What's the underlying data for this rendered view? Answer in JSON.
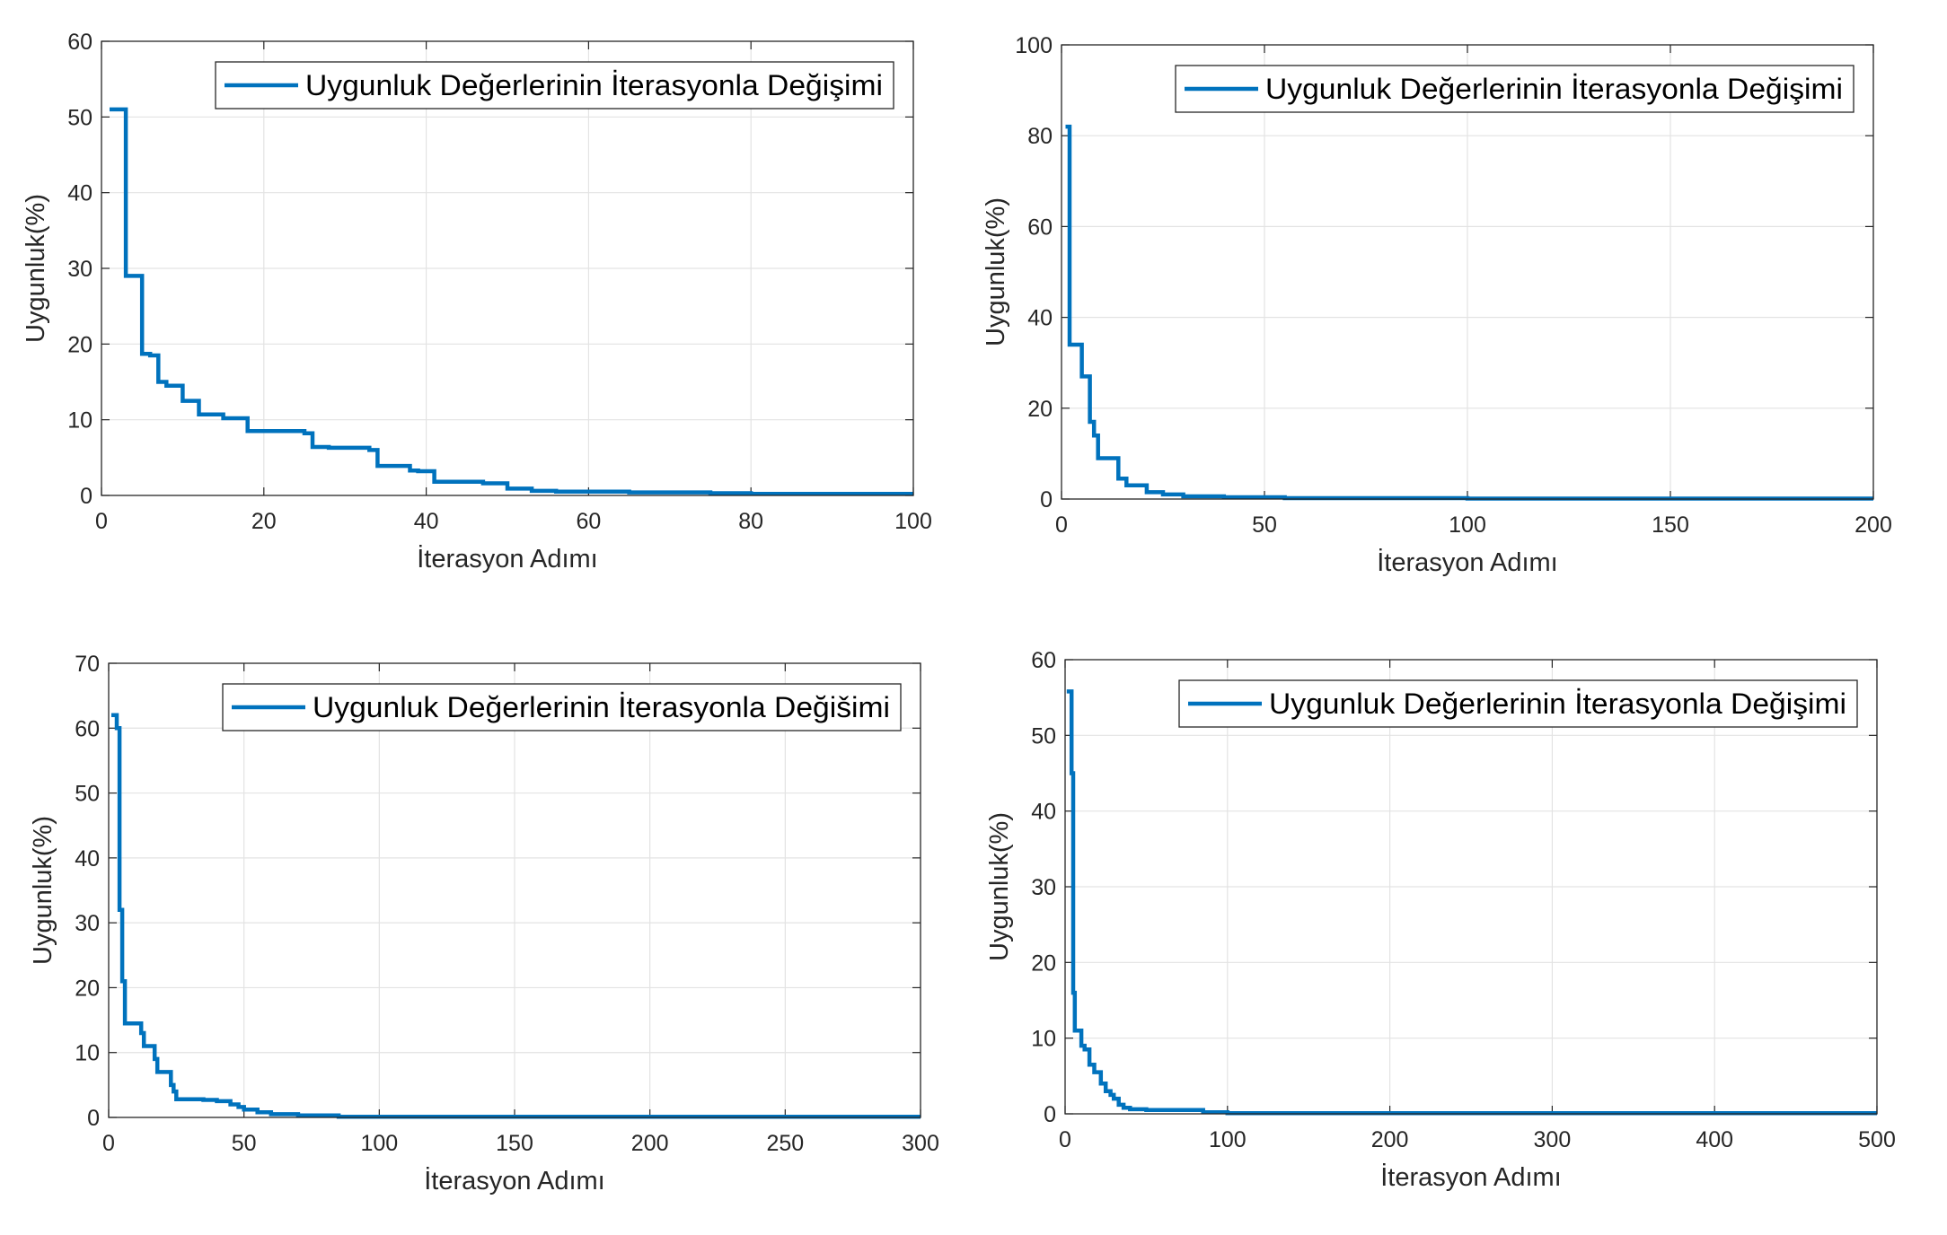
{
  "colors": {
    "series": "#0072BD",
    "grid": "#e3e3e3",
    "axis": "#262626"
  },
  "chart_data": [
    {
      "type": "line",
      "xlabel": "İterasyon Adımı",
      "ylabel": "Uygunluk(%)",
      "xlim": [
        0,
        100
      ],
      "ylim": [
        0,
        60
      ],
      "xticks": [
        "0",
        "20",
        "40",
        "60",
        "80",
        "100"
      ],
      "yticks": [
        "0",
        "10",
        "20",
        "30",
        "40",
        "50",
        "60"
      ],
      "grid": true,
      "legend_position": "top-right",
      "series": [
        {
          "name": "Uygunluk Değerlerinin İterasyonla Değişimi",
          "step": true,
          "x": [
            1,
            3,
            5,
            6,
            7,
            8,
            10,
            12,
            15,
            18,
            22,
            25,
            26,
            28,
            33,
            34,
            36,
            38,
            39,
            41,
            43,
            47,
            50,
            53,
            56,
            65,
            75,
            80,
            100
          ],
          "y": [
            51,
            29,
            18.7,
            18.5,
            15,
            14.5,
            12.5,
            10.7,
            10.2,
            8.5,
            8.5,
            8.2,
            6.4,
            6.3,
            6,
            3.9,
            3.9,
            3.3,
            3.2,
            1.8,
            1.8,
            1.6,
            0.9,
            0.6,
            0.5,
            0.4,
            0.3,
            0.2,
            0.2
          ]
        }
      ]
    },
    {
      "type": "line",
      "xlabel": "İterasyon Adımı",
      "ylabel": "Uygunluk(%)",
      "xlim": [
        0,
        200
      ],
      "ylim": [
        0,
        100
      ],
      "xticks": [
        "0",
        "50",
        "100",
        "150",
        "200"
      ],
      "yticks": [
        "0",
        "20",
        "40",
        "60",
        "80",
        "100"
      ],
      "grid": true,
      "legend_position": "top-right",
      "series": [
        {
          "name": "Uygunluk Değerlerinin İterasyonla Değişimi",
          "step": true,
          "x": [
            1,
            2,
            5,
            7,
            8,
            9,
            14,
            16,
            21,
            25,
            30,
            40,
            55,
            100,
            200
          ],
          "y": [
            82,
            34,
            27,
            17,
            14,
            9,
            4.5,
            3,
            1.5,
            1,
            0.6,
            0.4,
            0.2,
            0.1,
            0.1
          ]
        }
      ]
    },
    {
      "type": "line",
      "xlabel": "İterasyon Adımı",
      "ylabel": "Uygunluk(%)",
      "xlim": [
        0,
        300
      ],
      "ylim": [
        0,
        70
      ],
      "xticks": [
        "0",
        "50",
        "100",
        "150",
        "200",
        "250",
        "300"
      ],
      "yticks": [
        "0",
        "10",
        "20",
        "30",
        "40",
        "50",
        "60",
        "70"
      ],
      "grid": true,
      "legend_position": "top-right",
      "series": [
        {
          "name": "Uygunluk Değerlerinin İterasyonla Değišimi",
          "step": true,
          "x": [
            1,
            3,
            4,
            5,
            6,
            12,
            13,
            14,
            17,
            18,
            22,
            23,
            24,
            25,
            35,
            40,
            45,
            48,
            50,
            55,
            60,
            70,
            85,
            300
          ],
          "y": [
            62,
            60,
            32,
            21,
            14.5,
            13,
            11,
            11,
            9,
            7,
            7,
            5,
            4,
            2.8,
            2.7,
            2.5,
            2,
            1.6,
            1.2,
            0.8,
            0.5,
            0.3,
            0.1,
            0.1
          ]
        }
      ]
    },
    {
      "type": "line",
      "xlabel": "İterasyon Adımı",
      "ylabel": "Uygunluk(%)",
      "xlim": [
        0,
        500
      ],
      "ylim": [
        0,
        60
      ],
      "xticks": [
        "0",
        "100",
        "200",
        "300",
        "400",
        "500"
      ],
      "yticks": [
        "0",
        "10",
        "20",
        "30",
        "40",
        "50",
        "60"
      ],
      "grid": true,
      "legend_position": "top-right",
      "series": [
        {
          "name": "Uygunluk Değerlerinin İterasyonla Değişimi",
          "step": true,
          "x": [
            1,
            4,
            5,
            6,
            7,
            10,
            12,
            15,
            18,
            20,
            22,
            25,
            28,
            30,
            33,
            36,
            40,
            50,
            85,
            100,
            500
          ],
          "y": [
            55.8,
            45,
            16,
            11,
            11,
            9,
            8.5,
            6.5,
            5.5,
            5.5,
            4,
            3,
            2.5,
            2,
            1.2,
            0.8,
            0.6,
            0.5,
            0.2,
            0.1,
            0.1
          ]
        }
      ]
    }
  ]
}
